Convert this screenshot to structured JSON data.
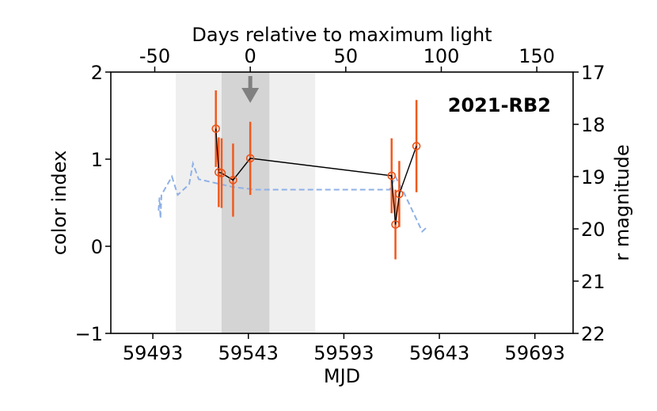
{
  "chart_data": {
    "type": "line",
    "title": "",
    "annotation": "2021-RB2",
    "xlabel": "MJD",
    "ylabel": "color index",
    "top_xlabel": "Days relative to maximum light",
    "right_ylabel": "r magnitude",
    "xlim": [
      59471,
      59713
    ],
    "ylim": [
      -1,
      2
    ],
    "right_ylim": [
      22,
      17
    ],
    "top_xlim": [
      -73,
      169
    ],
    "x_ticks": [
      59493,
      59543,
      59593,
      59643,
      59693
    ],
    "x_tick_labels": [
      "59493",
      "59543",
      "59593",
      "59643",
      "59693"
    ],
    "y_ticks": [
      -1,
      0,
      1,
      2
    ],
    "y_tick_labels": [
      "−1",
      "0",
      "1",
      "2"
    ],
    "top_ticks": [
      -50,
      0,
      50,
      100,
      150
    ],
    "top_tick_labels": [
      "-50",
      "0",
      "50",
      "100",
      "150"
    ],
    "right_ticks": [
      17,
      18,
      19,
      20,
      21,
      22
    ],
    "right_tick_labels": [
      "17",
      "18",
      "19",
      "20",
      "21",
      "22"
    ],
    "max_light_mjd": 59544,
    "bands": [
      {
        "x0": 59505,
        "x1": 59578,
        "color": "#efefef"
      },
      {
        "x0": 59529,
        "x1": 59554,
        "color": "#d4d4d4"
      }
    ],
    "series": [
      {
        "style": "errorbar-line",
        "color": "#000000",
        "marker_color": "#e8531c",
        "errorbar_color": "#f05a1e",
        "x": [
          59526,
          59527.5,
          59529,
          59535,
          59544,
          59618,
          59620,
          59622,
          59631
        ],
        "y": [
          1.35,
          0.85,
          0.84,
          0.76,
          1.01,
          0.81,
          0.25,
          0.6,
          1.15
        ],
        "yerr": [
          0.44,
          0.4,
          0.4,
          0.42,
          0.42,
          0.43,
          0.4,
          0.38,
          0.53
        ]
      },
      {
        "style": "dashed",
        "axis": "right",
        "color": "#8fb0e8",
        "x": [
          59496,
          59496.5,
          59497,
          59497.5,
          59503,
          59506,
          59512,
          59514,
          59517,
          59535,
          59547,
          59560,
          59580,
          59600,
          59617,
          59620,
          59625,
          59634,
          59637
        ],
        "y": [
          19.65,
          19.4,
          19.8,
          19.35,
          19.0,
          19.35,
          19.15,
          18.75,
          19.05,
          19.2,
          19.25,
          19.25,
          19.25,
          19.25,
          19.25,
          19.0,
          19.35,
          20.05,
          19.95
        ]
      }
    ],
    "arrow": {
      "x": 59544,
      "direction": "down",
      "color": "#808080"
    }
  }
}
